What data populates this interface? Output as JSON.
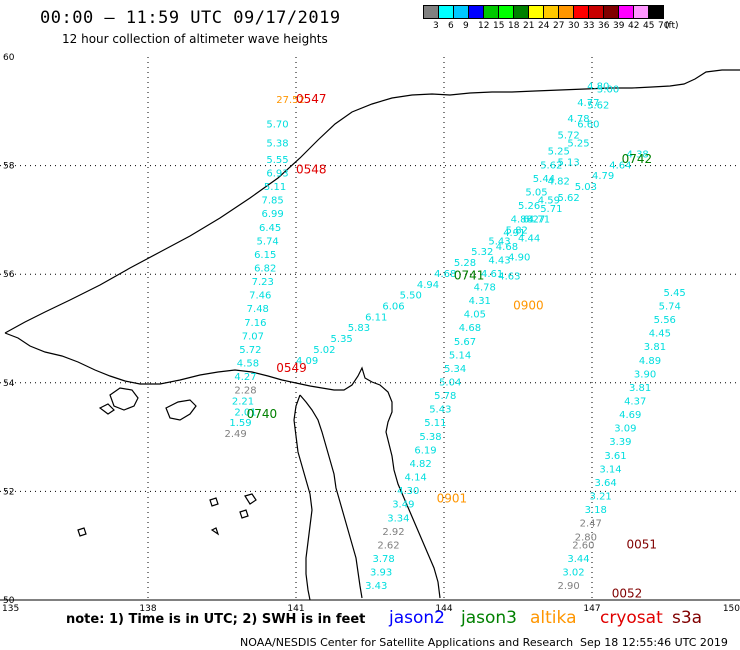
{
  "title": "00:00  –  11:59  UTC  09/17/2019",
  "subtitle": "12 hour collection of altimeter wave heights",
  "scale": {
    "colors": [
      "#808080",
      "#00ffff",
      "#00c8ff",
      "#0000ff",
      "#00c800",
      "#00ff00",
      "#008000",
      "#ffff00",
      "#ffc800",
      "#ff9600",
      "#ff0000",
      "#c80000",
      "#800000",
      "#ff00ff",
      "#ff96ff",
      "#000000"
    ],
    "labels": [
      "3",
      "6",
      "9",
      "12",
      "15",
      "18",
      "21",
      "24",
      "27",
      "30",
      "33",
      "36",
      "39",
      "42",
      "45",
      "70",
      "(ft)"
    ]
  },
  "map": {
    "lat_ticks": [
      "60",
      "58",
      "56",
      "54",
      "52",
      "50"
    ],
    "lon_ticks": [
      "135",
      "138",
      "141",
      "144",
      "147",
      "150"
    ]
  },
  "chart_data": {
    "type": "scatter",
    "xlabel": "",
    "ylabel": "",
    "xlim": [
      135,
      150
    ],
    "ylim": [
      50,
      60
    ],
    "series": [
      {
        "name": "track_0547",
        "color": "#00dede",
        "points": [
          {
            "lon": 140.6,
            "lat": 59.15,
            "value": "27.52",
            "color": "#ff9600"
          },
          {
            "lon": 140.4,
            "lat": 58.7,
            "value": "5.70"
          },
          {
            "lon": 140.4,
            "lat": 58.35,
            "value": "5.38"
          },
          {
            "lon": 140.4,
            "lat": 58.05,
            "value": "5.55"
          },
          {
            "lon": 140.4,
            "lat": 57.8,
            "value": "6.93"
          },
          {
            "lon": 140.35,
            "lat": 57.55,
            "value": "5.11"
          },
          {
            "lon": 140.3,
            "lat": 57.3,
            "value": "7.85"
          },
          {
            "lon": 140.3,
            "lat": 57.05,
            "value": "6.99"
          },
          {
            "lon": 140.25,
            "lat": 56.8,
            "value": "6.45"
          },
          {
            "lon": 140.2,
            "lat": 56.55,
            "value": "5.74"
          },
          {
            "lon": 140.15,
            "lat": 56.3,
            "value": "6.15"
          },
          {
            "lon": 140.15,
            "lat": 56.05,
            "value": "6.82"
          },
          {
            "lon": 140.1,
            "lat": 55.8,
            "value": "7.23"
          },
          {
            "lon": 140.05,
            "lat": 55.55,
            "value": "7.46"
          },
          {
            "lon": 140.0,
            "lat": 55.3,
            "value": "7.48"
          },
          {
            "lon": 139.95,
            "lat": 55.05,
            "value": "7.16"
          },
          {
            "lon": 139.9,
            "lat": 54.8,
            "value": "7.07"
          },
          {
            "lon": 139.85,
            "lat": 54.55,
            "value": "5.72"
          },
          {
            "lon": 139.8,
            "lat": 54.3,
            "value": "4.58"
          },
          {
            "lon": 139.75,
            "lat": 54.05,
            "value": "4.27"
          },
          {
            "lon": 139.75,
            "lat": 53.8,
            "value": "2.28",
            "color": "#808080"
          },
          {
            "lon": 139.7,
            "lat": 53.6,
            "value": "2.21"
          },
          {
            "lon": 139.75,
            "lat": 53.4,
            "value": "2.01"
          },
          {
            "lon": 139.65,
            "lat": 53.2,
            "value": "1.59"
          },
          {
            "lon": 139.55,
            "lat": 53.0,
            "value": "2.49",
            "color": "#808080"
          }
        ]
      },
      {
        "name": "track_0741",
        "color": "#00dede",
        "points": [
          {
            "lon": 141.0,
            "lat": 54.35,
            "value": "4.09"
          },
          {
            "lon": 141.35,
            "lat": 54.55,
            "value": "5.02"
          },
          {
            "lon": 141.7,
            "lat": 54.75,
            "value": "5.35"
          },
          {
            "lon": 142.05,
            "lat": 54.95,
            "value": "5.83"
          },
          {
            "lon": 142.4,
            "lat": 55.15,
            "value": "6.11"
          },
          {
            "lon": 142.75,
            "lat": 55.35,
            "value": "6.06"
          },
          {
            "lon": 143.1,
            "lat": 55.55,
            "value": "5.50"
          },
          {
            "lon": 143.45,
            "lat": 55.75,
            "value": "4.94"
          },
          {
            "lon": 143.8,
            "lat": 55.95,
            "value": "4.68"
          },
          {
            "lon": 144.2,
            "lat": 56.15,
            "value": "5.28"
          },
          {
            "lon": 144.55,
            "lat": 56.35,
            "value": "5.32"
          },
          {
            "lon": 144.9,
            "lat": 56.55,
            "value": "5.43"
          },
          {
            "lon": 145.25,
            "lat": 56.75,
            "value": "5.82"
          },
          {
            "lon": 145.6,
            "lat": 56.95,
            "value": "6.27"
          },
          {
            "lon": 145.95,
            "lat": 57.15,
            "value": "5.71"
          },
          {
            "lon": 146.3,
            "lat": 57.35,
            "value": "5.62"
          },
          {
            "lon": 146.65,
            "lat": 57.55,
            "value": "5.03"
          },
          {
            "lon": 147.0,
            "lat": 57.75,
            "value": "4.79"
          },
          {
            "lon": 147.35,
            "lat": 57.95,
            "value": "4.64"
          },
          {
            "lon": 147.7,
            "lat": 58.15,
            "value": "4.38"
          }
        ]
      },
      {
        "name": "track_0900",
        "color": "#00dede",
        "points": [
          {
            "lon": 142.4,
            "lat": 50.2,
            "value": "3.43"
          },
          {
            "lon": 142.5,
            "lat": 50.45,
            "value": "3.93"
          },
          {
            "lon": 142.55,
            "lat": 50.7,
            "value": "3.78"
          },
          {
            "lon": 142.65,
            "lat": 50.95,
            "value": "2.62",
            "color": "#808080"
          },
          {
            "lon": 142.75,
            "lat": 51.2,
            "value": "2.92",
            "color": "#808080"
          },
          {
            "lon": 142.85,
            "lat": 51.45,
            "value": "3.34"
          },
          {
            "lon": 142.95,
            "lat": 51.7,
            "value": "3.49"
          },
          {
            "lon": 143.05,
            "lat": 51.95,
            "value": "4.30"
          },
          {
            "lon": 143.2,
            "lat": 52.2,
            "value": "4.14"
          },
          {
            "lon": 143.3,
            "lat": 52.45,
            "value": "4.82"
          },
          {
            "lon": 143.4,
            "lat": 52.7,
            "value": "6.19"
          },
          {
            "lon": 143.5,
            "lat": 52.95,
            "value": "5.38"
          },
          {
            "lon": 143.6,
            "lat": 53.2,
            "value": "5.11"
          },
          {
            "lon": 143.7,
            "lat": 53.45,
            "value": "5.43"
          },
          {
            "lon": 143.8,
            "lat": 53.7,
            "value": "5.78"
          },
          {
            "lon": 143.9,
            "lat": 53.95,
            "value": "5.04"
          },
          {
            "lon": 144.0,
            "lat": 54.2,
            "value": "5.34"
          },
          {
            "lon": 144.1,
            "lat": 54.45,
            "value": "5.14"
          },
          {
            "lon": 144.2,
            "lat": 54.7,
            "value": "5.67"
          },
          {
            "lon": 144.3,
            "lat": 54.95,
            "value": "4.68"
          },
          {
            "lon": 144.4,
            "lat": 55.2,
            "value": "4.05"
          },
          {
            "lon": 144.5,
            "lat": 55.45,
            "value": "4.31"
          },
          {
            "lon": 144.6,
            "lat": 55.7,
            "value": "4.78"
          },
          {
            "lon": 144.75,
            "lat": 55.95,
            "value": "4.61"
          },
          {
            "lon": 144.9,
            "lat": 56.2,
            "value": "4.43"
          },
          {
            "lon": 145.05,
            "lat": 56.45,
            "value": "4.68"
          },
          {
            "lon": 145.2,
            "lat": 56.7,
            "value": "4.91"
          },
          {
            "lon": 145.35,
            "lat": 56.95,
            "value": "4.88"
          },
          {
            "lon": 145.5,
            "lat": 57.2,
            "value": "5.26"
          },
          {
            "lon": 145.65,
            "lat": 57.45,
            "value": "5.05"
          },
          {
            "lon": 145.8,
            "lat": 57.7,
            "value": "5.44"
          },
          {
            "lon": 145.95,
            "lat": 57.95,
            "value": "5.62"
          },
          {
            "lon": 146.1,
            "lat": 58.2,
            "value": "5.25"
          },
          {
            "lon": 146.3,
            "lat": 58.5,
            "value": "5.72"
          },
          {
            "lon": 146.5,
            "lat": 58.8,
            "value": "4.78"
          },
          {
            "lon": 146.7,
            "lat": 59.1,
            "value": "4.77"
          },
          {
            "lon": 146.9,
            "lat": 59.4,
            "value": "4.80"
          }
        ]
      },
      {
        "name": "track_0742",
        "color": "#00dede",
        "points": [
          {
            "lon": 145.1,
            "lat": 55.9,
            "value": "4.63"
          },
          {
            "lon": 145.3,
            "lat": 56.25,
            "value": "4.90"
          },
          {
            "lon": 145.5,
            "lat": 56.6,
            "value": "4.44"
          },
          {
            "lon": 145.7,
            "lat": 56.95,
            "value": "4.71"
          },
          {
            "lon": 145.9,
            "lat": 57.3,
            "value": "4.59"
          },
          {
            "lon": 146.1,
            "lat": 57.65,
            "value": "4.82"
          },
          {
            "lon": 146.3,
            "lat": 58.0,
            "value": "5.13"
          },
          {
            "lon": 146.5,
            "lat": 58.35,
            "value": "5.25"
          },
          {
            "lon": 146.7,
            "lat": 58.7,
            "value": "6.60"
          },
          {
            "lon": 146.9,
            "lat": 59.05,
            "value": "5.62"
          },
          {
            "lon": 147.1,
            "lat": 59.35,
            "value": "5.00"
          }
        ]
      },
      {
        "name": "track_0051",
        "color": "#00dede",
        "points": [
          {
            "lon": 146.3,
            "lat": 50.2,
            "value": "2.90",
            "color": "#808080"
          },
          {
            "lon": 146.4,
            "lat": 50.45,
            "value": "3.02"
          },
          {
            "lon": 146.5,
            "lat": 50.7,
            "value": "3.44"
          },
          {
            "lon": 146.6,
            "lat": 50.95,
            "value": "2.60",
            "color": "#808080"
          },
          {
            "lon": 146.65,
            "lat": 51.1,
            "value": "2.80",
            "color": "#808080"
          },
          {
            "lon": 146.75,
            "lat": 51.35,
            "value": "2.47",
            "color": "#808080"
          },
          {
            "lon": 146.85,
            "lat": 51.6,
            "value": "3.18"
          },
          {
            "lon": 146.95,
            "lat": 51.85,
            "value": "3.21"
          },
          {
            "lon": 147.05,
            "lat": 52.1,
            "value": "3.64"
          },
          {
            "lon": 147.15,
            "lat": 52.35,
            "value": "3.14"
          },
          {
            "lon": 147.25,
            "lat": 52.6,
            "value": "3.61"
          },
          {
            "lon": 147.35,
            "lat": 52.85,
            "value": "3.39"
          },
          {
            "lon": 147.45,
            "lat": 53.1,
            "value": "3.09"
          },
          {
            "lon": 147.55,
            "lat": 53.35,
            "value": "4.69"
          },
          {
            "lon": 147.65,
            "lat": 53.6,
            "value": "4.37"
          },
          {
            "lon": 147.75,
            "lat": 53.85,
            "value": "3.81"
          },
          {
            "lon": 147.85,
            "lat": 54.1,
            "value": "3.90"
          },
          {
            "lon": 147.95,
            "lat": 54.35,
            "value": "4.89"
          },
          {
            "lon": 148.05,
            "lat": 54.6,
            "value": "3.81"
          },
          {
            "lon": 148.15,
            "lat": 54.85,
            "value": "4.45"
          },
          {
            "lon": 148.25,
            "lat": 55.1,
            "value": "5.56"
          },
          {
            "lon": 148.35,
            "lat": 55.35,
            "value": "5.74"
          },
          {
            "lon": 148.45,
            "lat": 55.6,
            "value": "5.45"
          }
        ]
      }
    ],
    "time_labels": [
      {
        "text": "0547",
        "lon": 141.0,
        "lat": 59.15,
        "color": "#e00000"
      },
      {
        "text": "0548",
        "lon": 141.0,
        "lat": 57.85,
        "color": "#e00000"
      },
      {
        "text": "0549",
        "lon": 140.6,
        "lat": 54.2,
        "color": "#e00000"
      },
      {
        "text": "0740",
        "lon": 140.0,
        "lat": 53.35,
        "color": "#008000"
      },
      {
        "text": "0741",
        "lon": 144.2,
        "lat": 55.9,
        "color": "#008000"
      },
      {
        "text": "0742",
        "lon": 147.6,
        "lat": 58.05,
        "color": "#008000"
      },
      {
        "text": "0900",
        "lon": 145.4,
        "lat": 55.35,
        "color": "#ff9600"
      },
      {
        "text": "0901",
        "lon": 143.85,
        "lat": 51.8,
        "color": "#ff9600"
      },
      {
        "text": "0051",
        "lon": 147.7,
        "lat": 50.95,
        "color": "#800000"
      },
      {
        "text": "0052",
        "lon": 147.4,
        "lat": 50.05,
        "color": "#800000"
      }
    ]
  },
  "note": "note:  1)  Time is in UTC;  2)  SWH is in feet",
  "missions": [
    {
      "name": "jason2",
      "color": "#0000ff"
    },
    {
      "name": "jason3",
      "color": "#008000"
    },
    {
      "name": "altika",
      "color": "#ff9600"
    },
    {
      "name": "cryosat",
      "color": "#e00000"
    },
    {
      "name": "s3a",
      "color": "#800000"
    }
  ],
  "footer_left": "NOAA/NESDIS Center for Satellite Applications and Research",
  "footer_right": "Sep 18 12:55:46 UTC 2019"
}
